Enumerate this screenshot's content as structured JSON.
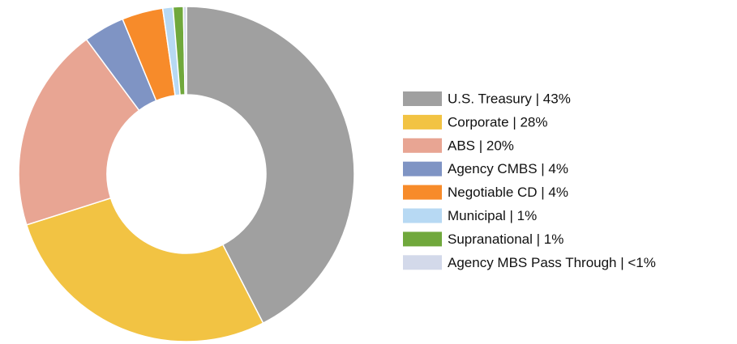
{
  "chart_data": {
    "type": "donut",
    "categories": [
      "U.S. Treasury | 43%",
      "Corporate | 28%",
      "ABS | 20%",
      "Agency CMBS | 4%",
      "Negotiable CD | 4%",
      "Municipal | 1%",
      "Supranational | 1%",
      "Agency MBS Pass Through | <1%"
    ],
    "values": [
      43,
      28,
      20,
      4,
      4,
      1,
      1,
      0.3
    ],
    "colors": [
      "#a0a0a0",
      "#f2c343",
      "#e8a593",
      "#7f94c4",
      "#f78b2a",
      "#b7d9f3",
      "#70a83c",
      "#d3d9ea"
    ],
    "legend": "right"
  }
}
